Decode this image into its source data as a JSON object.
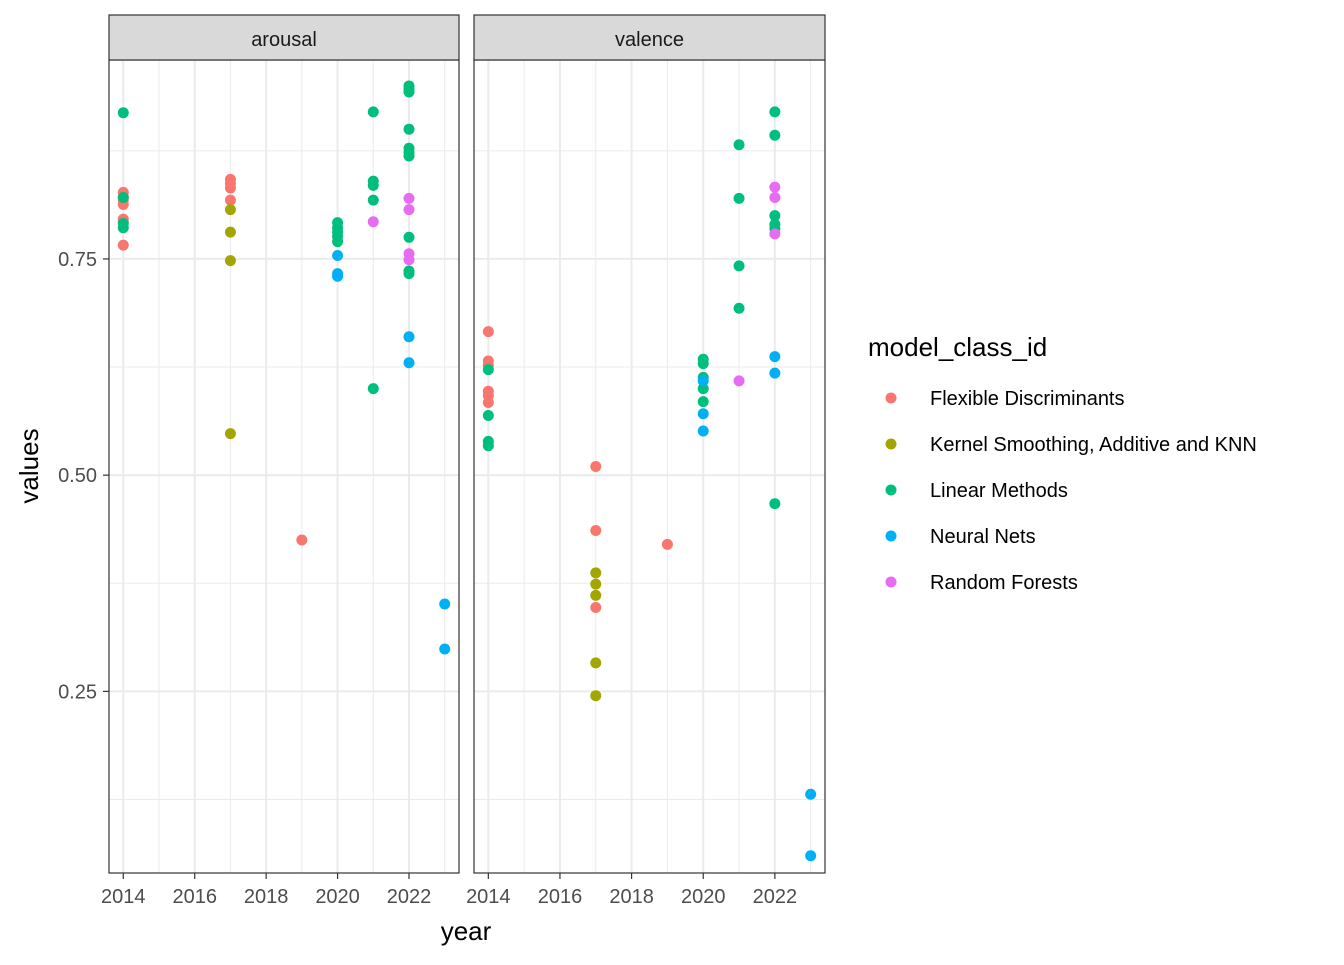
{
  "chart_data": {
    "type": "scatter",
    "xlabel": "year",
    "ylabel": "values",
    "xlim": [
      2013.6,
      2023.4
    ],
    "ylim": [
      0.04,
      0.98
    ],
    "x_ticks": [
      "2014",
      "2016",
      "2018",
      "2020",
      "2022"
    ],
    "y_ticks": [
      "0.25",
      "0.50",
      "0.75"
    ],
    "grid": true,
    "legend": {
      "title": "model_class_id",
      "placement": "right",
      "entries": [
        {
          "name": "Flexible Discriminants",
          "color": "#F8766D"
        },
        {
          "name": "Kernel Smoothing, Additive and KNN",
          "color": "#A3A500"
        },
        {
          "name": "Linear Methods",
          "color": "#00BF7D"
        },
        {
          "name": "Neural Nets",
          "color": "#00B0F6"
        },
        {
          "name": "Random Forests",
          "color": "#E76BF3"
        }
      ]
    },
    "panels": [
      {
        "label": "arousal",
        "series": [
          {
            "name": "Flexible Discriminants",
            "points": [
              [
                2014,
                0.827
              ],
              [
                2014,
                0.822
              ],
              [
                2014,
                0.818
              ],
              [
                2014,
                0.813
              ],
              [
                2014,
                0.796
              ],
              [
                2014,
                0.793
              ],
              [
                2014,
                0.766
              ],
              [
                2017,
                0.842
              ],
              [
                2017,
                0.837
              ],
              [
                2017,
                0.832
              ],
              [
                2017,
                0.818
              ],
              [
                2019,
                0.425
              ]
            ]
          },
          {
            "name": "Kernel Smoothing, Additive and KNN",
            "points": [
              [
                2017,
                0.807
              ],
              [
                2017,
                0.781
              ],
              [
                2017,
                0.748
              ],
              [
                2017,
                0.548
              ]
            ]
          },
          {
            "name": "Linear Methods",
            "points": [
              [
                2014,
                0.919
              ],
              [
                2014,
                0.821
              ],
              [
                2014,
                0.791
              ],
              [
                2014,
                0.786
              ],
              [
                2020,
                0.792
              ],
              [
                2020,
                0.786
              ],
              [
                2020,
                0.781
              ],
              [
                2020,
                0.776
              ],
              [
                2020,
                0.77
              ],
              [
                2021,
                0.92
              ],
              [
                2021,
                0.84
              ],
              [
                2021,
                0.835
              ],
              [
                2021,
                0.818
              ],
              [
                2021,
                0.6
              ],
              [
                2022,
                0.95
              ],
              [
                2022,
                0.946
              ],
              [
                2022,
                0.943
              ],
              [
                2022,
                0.9
              ],
              [
                2022,
                0.878
              ],
              [
                2022,
                0.873
              ],
              [
                2022,
                0.869
              ],
              [
                2022,
                0.775
              ],
              [
                2022,
                0.736
              ],
              [
                2022,
                0.733
              ]
            ]
          },
          {
            "name": "Neural Nets",
            "points": [
              [
                2020,
                0.754
              ],
              [
                2020,
                0.733
              ],
              [
                2020,
                0.73
              ],
              [
                2022,
                0.66
              ],
              [
                2022,
                0.63
              ],
              [
                2023,
                0.351
              ],
              [
                2023,
                0.299
              ]
            ]
          },
          {
            "name": "Random Forests",
            "points": [
              [
                2021,
                0.793
              ],
              [
                2022,
                0.82
              ],
              [
                2022,
                0.807
              ],
              [
                2022,
                0.756
              ],
              [
                2022,
                0.749
              ]
            ]
          }
        ]
      },
      {
        "label": "valence",
        "series": [
          {
            "name": "Flexible Discriminants",
            "points": [
              [
                2014,
                0.666
              ],
              [
                2014,
                0.632
              ],
              [
                2014,
                0.627
              ],
              [
                2014,
                0.597
              ],
              [
                2014,
                0.592
              ],
              [
                2014,
                0.584
              ],
              [
                2017,
                0.51
              ],
              [
                2017,
                0.436
              ],
              [
                2017,
                0.347
              ],
              [
                2019,
                0.42
              ]
            ]
          },
          {
            "name": "Kernel Smoothing, Additive and KNN",
            "points": [
              [
                2017,
                0.387
              ],
              [
                2017,
                0.374
              ],
              [
                2017,
                0.361
              ],
              [
                2017,
                0.283
              ],
              [
                2017,
                0.245
              ]
            ]
          },
          {
            "name": "Linear Methods",
            "points": [
              [
                2014,
                0.622
              ],
              [
                2014,
                0.569
              ],
              [
                2014,
                0.539
              ],
              [
                2014,
                0.534
              ],
              [
                2020,
                0.634
              ],
              [
                2020,
                0.629
              ],
              [
                2020,
                0.613
              ],
              [
                2020,
                0.6
              ],
              [
                2020,
                0.585
              ],
              [
                2021,
                0.882
              ],
              [
                2021,
                0.82
              ],
              [
                2021,
                0.742
              ],
              [
                2021,
                0.693
              ],
              [
                2022,
                0.92
              ],
              [
                2022,
                0.893
              ],
              [
                2022,
                0.8
              ],
              [
                2022,
                0.79
              ],
              [
                2022,
                0.785
              ],
              [
                2022,
                0.467
              ]
            ]
          },
          {
            "name": "Neural Nets",
            "points": [
              [
                2020,
                0.609
              ],
              [
                2020,
                0.571
              ],
              [
                2020,
                0.551
              ],
              [
                2022,
                0.637
              ],
              [
                2022,
                0.618
              ],
              [
                2023,
                0.131
              ],
              [
                2023,
                0.06
              ]
            ]
          },
          {
            "name": "Random Forests",
            "points": [
              [
                2021,
                0.609
              ],
              [
                2022,
                0.833
              ],
              [
                2022,
                0.821
              ],
              [
                2022,
                0.779
              ]
            ]
          }
        ]
      }
    ]
  }
}
